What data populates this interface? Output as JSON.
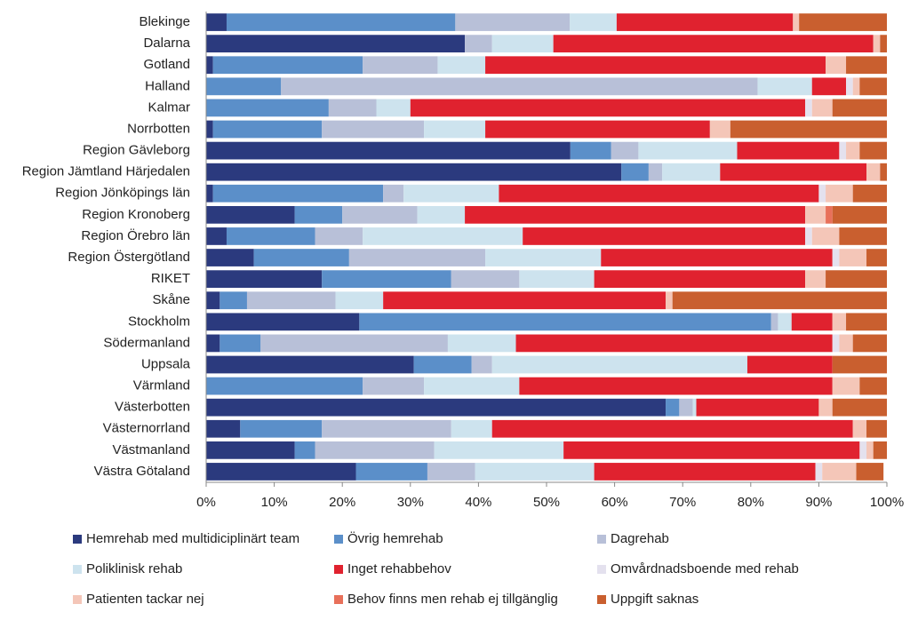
{
  "chart_data": {
    "type": "stacked_bar_horizontal",
    "categories": [
      "Blekinge",
      "Dalarna",
      "Gotland",
      "Halland",
      "Kalmar",
      "Norrbotten",
      "Region Gävleborg",
      "Region Jämtland Härjedalen",
      "Region Jönköpings län",
      "Region Kronoberg",
      "Region Örebro län",
      "Region Östergötland",
      "RIKET",
      "Skåne",
      "Stockholm",
      "Södermanland",
      "Uppsala",
      "Värmland",
      "Västerbotten",
      "Västernorrland",
      "Västmanland",
      "Västra Götaland"
    ],
    "series": [
      {
        "name": "Hemrehab med multidiciplinärt team",
        "color": "#2b3a7e",
        "values": [
          3,
          38,
          1,
          0,
          0,
          1,
          53.5,
          61,
          1,
          13,
          3,
          7,
          17,
          2,
          22.5,
          2,
          30.5,
          0,
          67.5,
          5,
          13,
          22
        ]
      },
      {
        "name": "Övrig hemrehab",
        "color": "#5b8fc9",
        "values": [
          33.6,
          0,
          22,
          11,
          18,
          16,
          6,
          4,
          25,
          7,
          13,
          14,
          19,
          4,
          60.5,
          6,
          8.5,
          23,
          2,
          12,
          3,
          10.5
        ]
      },
      {
        "name": "Dagrehab",
        "color": "#b8c0d8",
        "values": [
          16.8,
          4,
          11,
          70,
          7,
          15,
          4,
          2,
          3,
          11,
          7,
          20,
          10,
          13,
          1,
          27.5,
          3,
          9,
          2,
          19,
          17.5,
          7
        ]
      },
      {
        "name": "Poliklinisk rehab",
        "color": "#cde3ee",
        "values": [
          6.9,
          9,
          7,
          8,
          5,
          9,
          14.5,
          8.5,
          14,
          7,
          23.5,
          17,
          11,
          7,
          2,
          10,
          37.5,
          14,
          0.5,
          6,
          19,
          17.5
        ]
      },
      {
        "name": "Inget rehabbehov",
        "color": "#e0222f",
        "values": [
          25.9,
          47,
          50,
          5,
          58,
          33,
          15,
          21.5,
          47,
          50,
          41.5,
          34,
          31,
          41.5,
          6,
          46.5,
          12.5,
          46,
          18,
          53,
          43.5,
          32.5
        ]
      },
      {
        "name": "Omvårdnadsboende med rehab",
        "color": "#e4e1ee",
        "values": [
          0,
          0,
          0,
          1,
          1,
          0,
          1,
          0,
          1,
          0,
          1,
          1,
          0,
          0,
          0,
          1,
          0,
          0,
          0,
          0,
          1,
          1
        ]
      },
      {
        "name": "Patienten tackar nej",
        "color": "#f4c6b8",
        "values": [
          0.9,
          1,
          3,
          1,
          3,
          3,
          2,
          2,
          4,
          3,
          4,
          4,
          3,
          1,
          2,
          2,
          0,
          4,
          2,
          2,
          1,
          5
        ]
      },
      {
        "name": "Behov finns men rehab ej tillgänglig",
        "color": "#e8705a",
        "values": [
          0,
          0,
          0,
          0,
          0,
          0,
          0,
          0,
          0,
          1,
          0,
          0,
          0,
          0,
          0,
          0,
          0,
          0,
          0,
          0,
          0,
          0
        ]
      },
      {
        "name": "Uppgift saknas",
        "color": "#c95f2f",
        "values": [
          12.9,
          1,
          6,
          4,
          8,
          23,
          4,
          1,
          5,
          8,
          7,
          3,
          9,
          31.5,
          6,
          5,
          8,
          4,
          8,
          3,
          2,
          4
        ]
      }
    ],
    "xlim": [
      0,
      100
    ],
    "xticks": [
      {
        "value": 0,
        "label": "0%"
      },
      {
        "value": 10,
        "label": "10%"
      },
      {
        "value": 20,
        "label": "20%"
      },
      {
        "value": 30,
        "label": "30%"
      },
      {
        "value": 40,
        "label": "40%"
      },
      {
        "value": 50,
        "label": "50%"
      },
      {
        "value": 60,
        "label": "60%"
      },
      {
        "value": 70,
        "label": "70%"
      },
      {
        "value": 80,
        "label": "80%"
      },
      {
        "value": 90,
        "label": "90%"
      },
      {
        "value": 100,
        "label": "100%"
      }
    ],
    "grid": false
  }
}
